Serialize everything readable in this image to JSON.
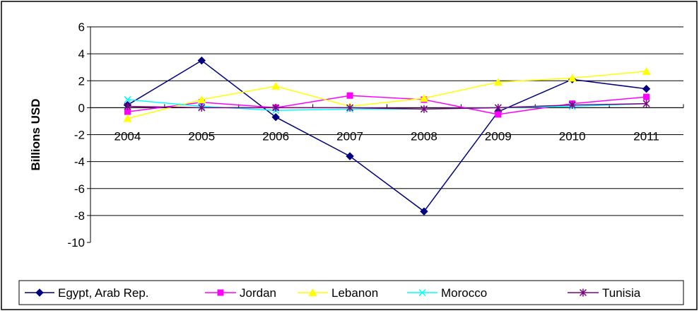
{
  "chart_data": {
    "type": "line",
    "ylabel": "Billions USD",
    "ylim": [
      -10,
      6
    ],
    "yticks": [
      6,
      4,
      2,
      0,
      -2,
      -4,
      -6,
      -8,
      -10
    ],
    "grid": true,
    "legend_position": "bottom",
    "categories": [
      "2004",
      "2005",
      "2006",
      "2007",
      "2008",
      "2009",
      "2010",
      "2011"
    ],
    "series": [
      {
        "name": "Egypt, Arab Rep.",
        "color": "#000080",
        "marker": "diamond",
        "values": [
          0.2,
          3.5,
          -0.7,
          -3.6,
          -7.7,
          -0.3,
          2.1,
          1.4
        ]
      },
      {
        "name": "Jordan",
        "color": "#ff00ff",
        "marker": "square",
        "values": [
          -0.3,
          0.4,
          0.0,
          0.9,
          0.6,
          -0.5,
          0.3,
          0.8
        ]
      },
      {
        "name": "Lebanon",
        "color": "#ffff00",
        "marker": "triangle",
        "values": [
          -0.8,
          0.6,
          1.6,
          0.1,
          0.7,
          1.9,
          2.2,
          2.7
        ]
      },
      {
        "name": "Morocco",
        "color": "#00ffff",
        "marker": "x",
        "values": [
          0.6,
          0.1,
          -0.2,
          -0.1,
          -0.1,
          0.0,
          0.1,
          0.3
        ]
      },
      {
        "name": "Tunisia",
        "color": "#800080",
        "marker": "asterisk",
        "values": [
          0.1,
          0.0,
          0.0,
          0.0,
          -0.1,
          0.0,
          0.2,
          0.3
        ]
      }
    ]
  }
}
